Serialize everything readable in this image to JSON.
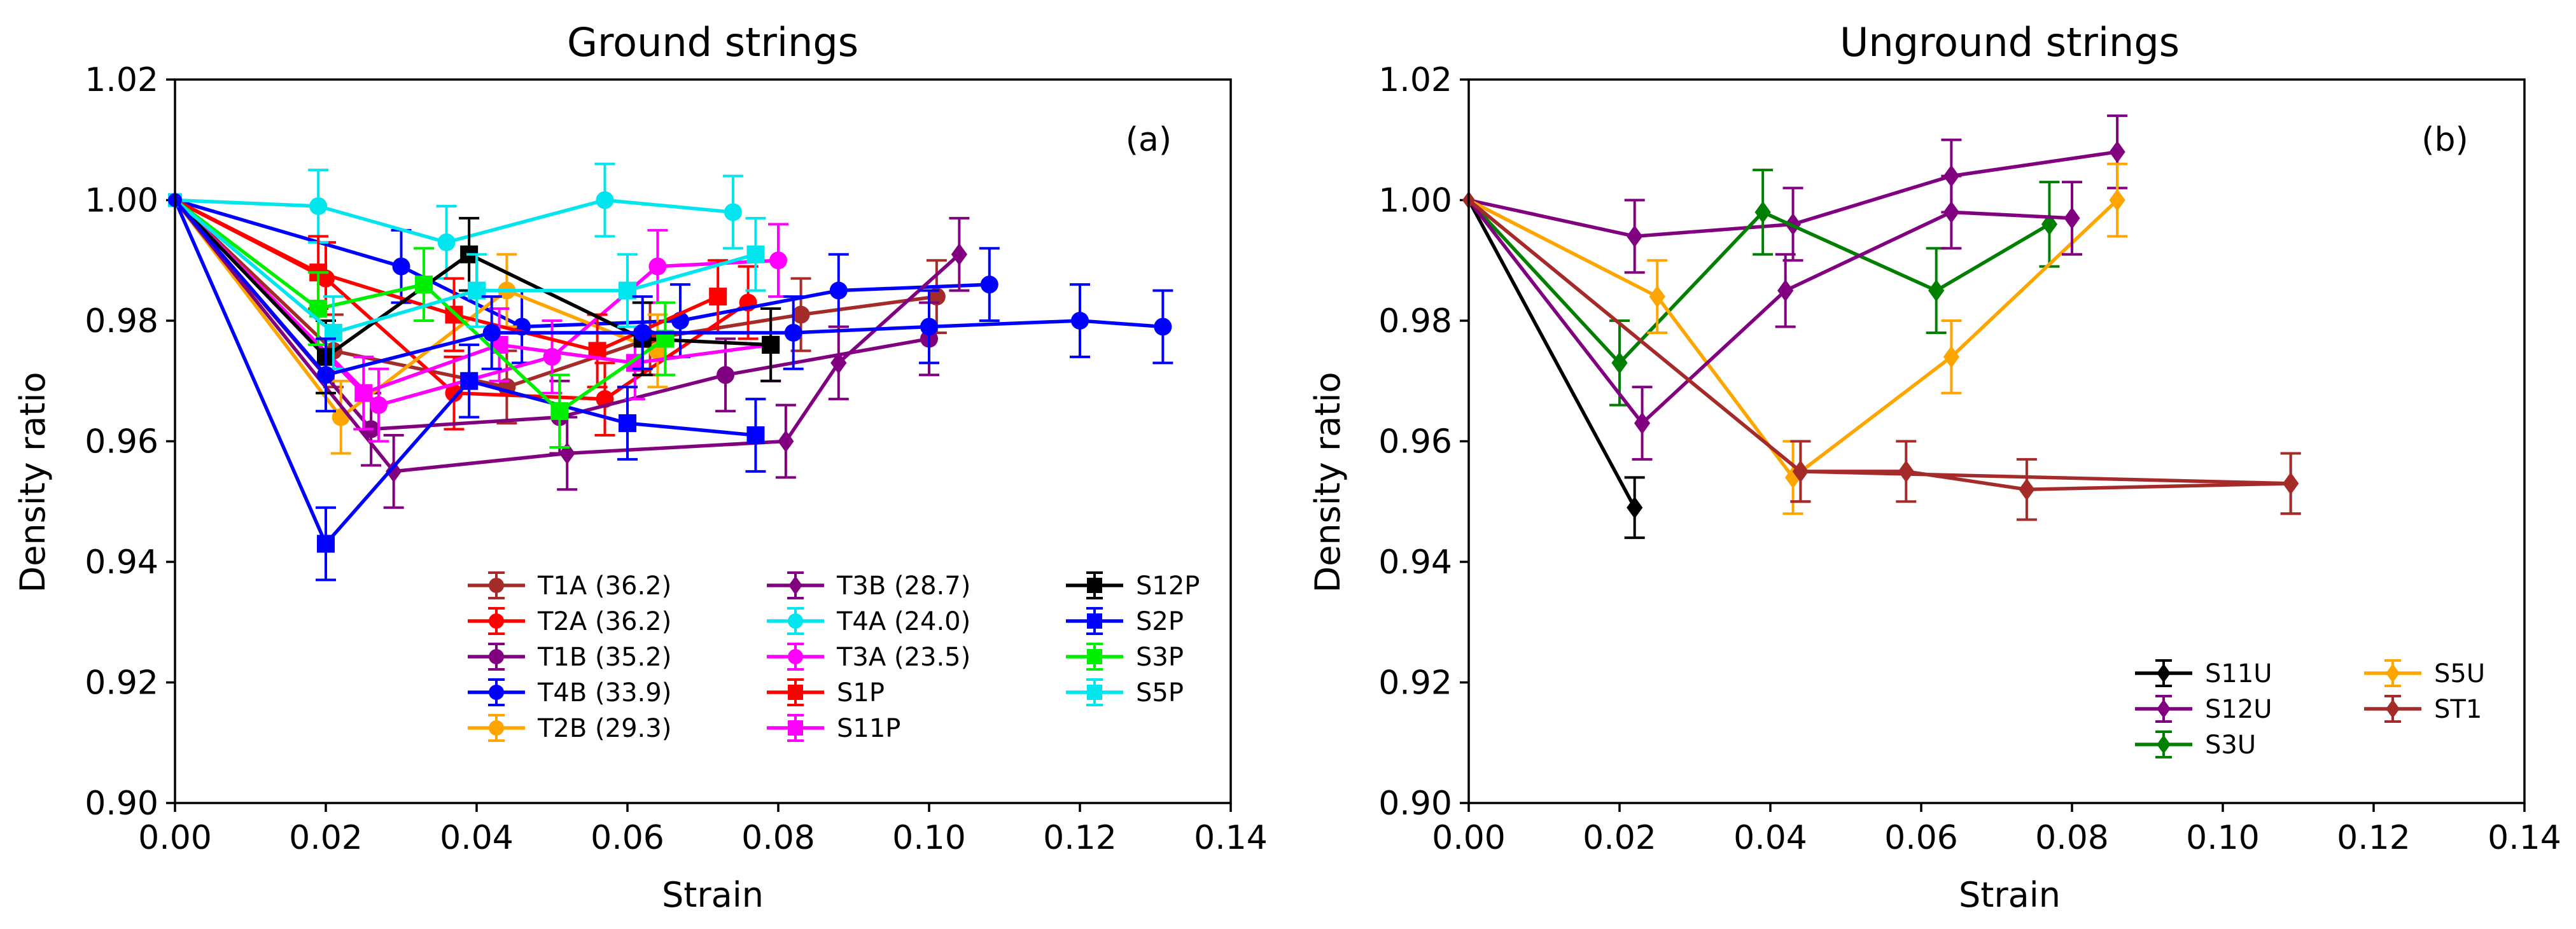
{
  "chart_data": [
    {
      "type": "line",
      "title": "Ground strings",
      "panel_label": "(a)",
      "xlabel": "Strain",
      "ylabel": "Density ratio",
      "xlim": [
        0.0,
        0.14
      ],
      "ylim": [
        0.9,
        1.02
      ],
      "xticks": [
        0.0,
        0.02,
        0.04,
        0.06,
        0.08,
        0.1,
        0.12,
        0.14
      ],
      "xtick_labels": [
        "0.00",
        "0.02",
        "0.04",
        "0.06",
        "0.08",
        "0.10",
        "0.12",
        "0.14"
      ],
      "yticks": [
        0.9,
        0.92,
        0.94,
        0.96,
        0.98,
        1.0,
        1.02
      ],
      "ytick_labels": [
        "0.90",
        "0.92",
        "0.94",
        "0.96",
        "0.98",
        "1.00",
        "1.02"
      ],
      "legend_position": "lower-right",
      "legend_columns": 3,
      "legend_rows": 5,
      "series": [
        {
          "name": "T1A (36.2)",
          "color": "#a52a2a",
          "marker": "circle",
          "x": [
            0,
            0.021,
            0.044,
            0.063,
            0.083,
            0.101
          ],
          "y": [
            1.0,
            0.975,
            0.969,
            0.977,
            0.981,
            0.984
          ],
          "err": 0.006
        },
        {
          "name": "T2A (36.2)",
          "color": "#ff0000",
          "marker": "circle",
          "x": [
            0,
            0.02,
            0.037,
            0.057,
            0.076
          ],
          "y": [
            1.0,
            0.987,
            0.968,
            0.967,
            0.983
          ],
          "err": 0.006
        },
        {
          "name": "T1B (35.2)",
          "color": "#800080",
          "marker": "circle",
          "x": [
            0,
            0.026,
            0.051,
            0.073,
            0.1
          ],
          "y": [
            1.0,
            0.962,
            0.964,
            0.971,
            0.977
          ],
          "err": 0.006
        },
        {
          "name": "T4B (33.9)",
          "color": "#0000ff",
          "marker": "circle",
          "x": [
            0,
            0.03,
            0.046,
            0.067,
            0.088,
            0.108
          ],
          "y": [
            1.0,
            0.989,
            0.979,
            0.98,
            0.985,
            0.986
          ],
          "err": 0.006
        },
        {
          "name": "T2B (29.3)",
          "color": "#ffa500",
          "marker": "circle",
          "x": [
            0,
            0.022,
            0.044,
            0.064
          ],
          "y": [
            1.0,
            0.964,
            0.985,
            0.975
          ],
          "err": 0.006
        },
        {
          "name": "T3B (28.7)",
          "color": "#800080",
          "marker": "diamond",
          "x": [
            0,
            0.029,
            0.052,
            0.081,
            0.088,
            0.104
          ],
          "y": [
            1.0,
            0.955,
            0.958,
            0.96,
            0.973,
            0.991
          ],
          "err": 0.006
        },
        {
          "name": "T4A (24.0)",
          "color": "#00e5ee",
          "marker": "circle",
          "x": [
            0,
            0.019,
            0.036,
            0.057,
            0.074
          ],
          "y": [
            1.0,
            0.999,
            0.993,
            1.0,
            0.998
          ],
          "err": 0.006
        },
        {
          "name": "T3A (23.5)",
          "color": "#ff00ff",
          "marker": "circle",
          "x": [
            0,
            0.027,
            0.05,
            0.064,
            0.08
          ],
          "y": [
            1.0,
            0.966,
            0.974,
            0.989,
            0.99
          ],
          "err": 0.006
        },
        {
          "name": "S1P",
          "color": "#ff0000",
          "marker": "square",
          "x": [
            0,
            0.019,
            0.037,
            0.056,
            0.072
          ],
          "y": [
            1.0,
            0.988,
            0.981,
            0.975,
            0.984
          ],
          "err": 0.006
        },
        {
          "name": "S11P",
          "color": "#ff00ff",
          "marker": "square",
          "x": [
            0,
            0.025,
            0.043,
            0.061,
            0.079
          ],
          "y": [
            1.0,
            0.968,
            0.976,
            0.973,
            0.976
          ],
          "err": 0.006
        },
        {
          "name": "S12P",
          "color": "#000000",
          "marker": "square",
          "x": [
            0,
            0.02,
            0.039,
            0.062,
            0.079
          ],
          "y": [
            1.0,
            0.974,
            0.991,
            0.977,
            0.976
          ],
          "err": 0.006
        },
        {
          "name": "S2P",
          "color": "#0000ff",
          "marker": "square",
          "x": [
            0,
            0.02,
            0.039,
            0.06,
            0.077
          ],
          "y": [
            1.0,
            0.943,
            0.97,
            0.963,
            0.961
          ],
          "err": 0.006
        },
        {
          "name": "S3P",
          "color": "#00ee00",
          "marker": "square",
          "x": [
            0,
            0.019,
            0.033,
            0.051,
            0.065
          ],
          "y": [
            1.0,
            0.982,
            0.986,
            0.965,
            0.977
          ],
          "err": 0.006
        },
        {
          "name": "S5P",
          "color": "#00e5ee",
          "marker": "square",
          "x": [
            0,
            0.021,
            0.04,
            0.06,
            0.077
          ],
          "y": [
            1.0,
            0.978,
            0.985,
            0.985,
            0.991
          ],
          "err": 0.006
        },
        {
          "name": "S2P (extended)",
          "color": "#0000ff",
          "marker": "circle",
          "legend": false,
          "x": [
            0,
            0.02,
            0.042,
            0.062,
            0.082,
            0.1,
            0.12,
            0.131
          ],
          "y": [
            1.0,
            0.971,
            0.978,
            0.978,
            0.978,
            0.979,
            0.98,
            0.979
          ],
          "err": 0.006
        }
      ]
    },
    {
      "type": "line",
      "title": "Unground strings",
      "panel_label": "(b)",
      "xlabel": "Strain",
      "ylabel": "Density ratio",
      "xlim": [
        0.0,
        0.14
      ],
      "ylim": [
        0.9,
        1.02
      ],
      "xticks": [
        0.0,
        0.02,
        0.04,
        0.06,
        0.08,
        0.1,
        0.12,
        0.14
      ],
      "xtick_labels": [
        "0.00",
        "0.02",
        "0.04",
        "0.06",
        "0.08",
        "0.10",
        "0.12",
        "0.14"
      ],
      "yticks": [
        0.9,
        0.92,
        0.94,
        0.96,
        0.98,
        1.0,
        1.02
      ],
      "ytick_labels": [
        "0.90",
        "0.92",
        "0.94",
        "0.96",
        "0.98",
        "1.00",
        "1.02"
      ],
      "legend_position": "lower-right",
      "legend_columns": 2,
      "legend_rows": 3,
      "series": [
        {
          "name": "S11U",
          "color": "#000000",
          "marker": "diamond",
          "x": [
            0,
            0.022
          ],
          "y": [
            1.0,
            0.949
          ],
          "err": 0.005
        },
        {
          "name": "S12U",
          "color": "#800080",
          "marker": "diamond",
          "x": [
            0,
            0.022,
            0.043,
            0.064,
            0.086
          ],
          "y": [
            1.0,
            0.994,
            0.996,
            1.004,
            1.008
          ],
          "err": 0.006
        },
        {
          "name": "S3U",
          "color": "#007f00",
          "marker": "diamond",
          "x": [
            0,
            0.02,
            0.039,
            0.062,
            0.077
          ],
          "y": [
            1.0,
            0.973,
            0.998,
            0.985,
            0.996
          ],
          "err": 0.007
        },
        {
          "name": "S5U",
          "color": "#ffa500",
          "marker": "diamond",
          "x": [
            0,
            0.025,
            0.043,
            0.064,
            0.086
          ],
          "y": [
            1.0,
            0.984,
            0.954,
            0.974,
            1.0
          ],
          "err": 0.006
        },
        {
          "name": "ST1",
          "color": "#a52a2a",
          "marker": "diamond",
          "x": [
            0,
            0.044,
            0.058,
            0.074,
            0.109
          ],
          "y": [
            1.0,
            0.955,
            0.955,
            0.952,
            0.953
          ],
          "err": 0.005
        },
        {
          "name": "S12U (b)",
          "color": "#800080",
          "marker": "diamond",
          "legend": false,
          "x": [
            0,
            0.023,
            0.042,
            0.064,
            0.08
          ],
          "y": [
            1.0,
            0.963,
            0.985,
            0.998,
            0.997
          ],
          "err": 0.006
        },
        {
          "name": "ST1 (b)",
          "color": "#a52a2a",
          "marker": "diamond",
          "legend": false,
          "x": [
            0,
            0.044,
            0.109
          ],
          "y": [
            1.0,
            0.955,
            0.953
          ],
          "err": 0.005
        }
      ]
    }
  ]
}
